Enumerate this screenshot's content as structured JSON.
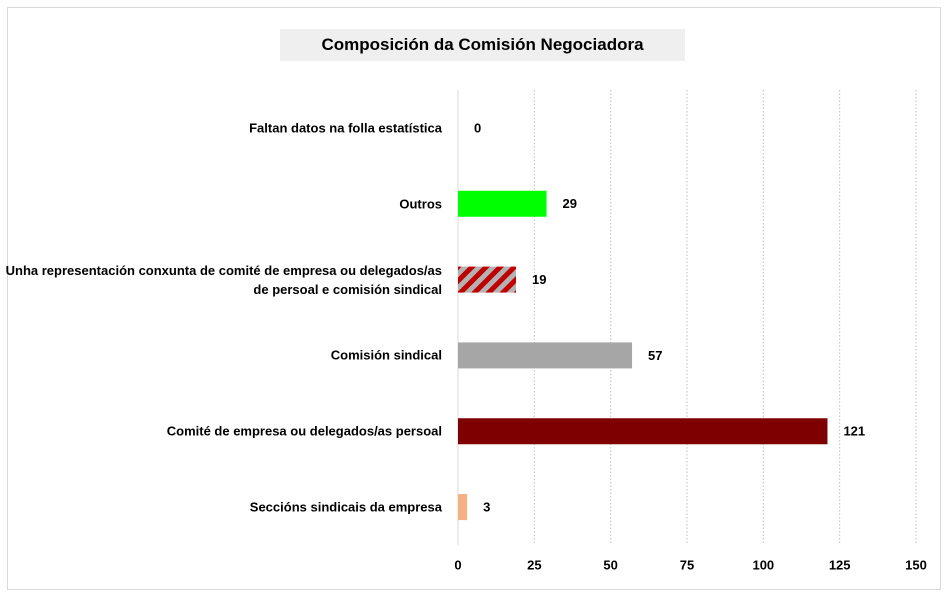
{
  "chart_data": {
    "type": "bar",
    "orientation": "horizontal",
    "title": "Composición da Comisión Negociadora",
    "categories": [
      "Faltan datos na folla estatística",
      "Outros",
      "Unha representación conxunta de comité de empresa ou delegados/as de persoal e comisión sindical",
      "Comisión sindical",
      "Comité de empresa ou delegados/as persoal",
      "Seccións sindicais da empresa"
    ],
    "values": [
      0,
      29,
      19,
      57,
      121,
      3
    ],
    "colors": [
      "#a6a6a6",
      "#00ff00",
      [
        "#c00000",
        "#b3b3b3"
      ],
      "#a6a6a6",
      "#7f0000",
      "#f4b183"
    ],
    "xlim": [
      0,
      150
    ],
    "xticks": [
      0,
      25,
      50,
      75,
      100,
      125,
      150
    ],
    "grid": true
  }
}
